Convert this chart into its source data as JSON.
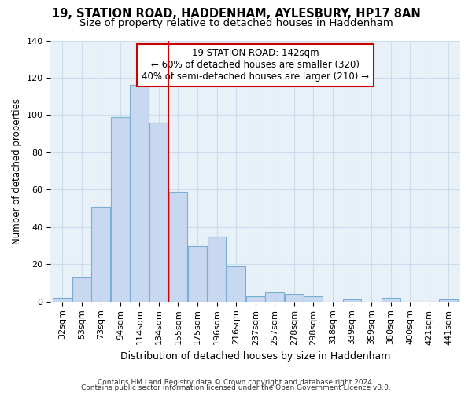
{
  "title1": "19, STATION ROAD, HADDENHAM, AYLESBURY, HP17 8AN",
  "title2": "Size of property relative to detached houses in Haddenham",
  "xlabel": "Distribution of detached houses by size in Haddenham",
  "ylabel": "Number of detached properties",
  "categories": [
    "32sqm",
    "53sqm",
    "73sqm",
    "94sqm",
    "114sqm",
    "134sqm",
    "155sqm",
    "175sqm",
    "196sqm",
    "216sqm",
    "237sqm",
    "257sqm",
    "278sqm",
    "298sqm",
    "318sqm",
    "339sqm",
    "359sqm",
    "380sqm",
    "400sqm",
    "421sqm",
    "441sqm"
  ],
  "values": [
    2,
    13,
    51,
    99,
    116,
    96,
    59,
    30,
    35,
    19,
    3,
    5,
    4,
    3,
    0,
    1,
    0,
    2,
    0,
    0,
    1
  ],
  "bar_color": "#c8d8f0",
  "bar_edge_color": "#7aafd4",
  "vline_x": 5.5,
  "vline_color": "#cc0000",
  "annotation_text": "19 STATION ROAD: 142sqm\n← 60% of detached houses are smaller (320)\n40% of semi-detached houses are larger (210) →",
  "annotation_box_color": "#ffffff",
  "annotation_box_edge": "#cc0000",
  "ylim": [
    0,
    140
  ],
  "yticks": [
    0,
    20,
    40,
    60,
    80,
    100,
    120,
    140
  ],
  "grid_color": "#ccdcef",
  "bg_color": "#e8f0f8",
  "footer1": "Contains HM Land Registry data © Crown copyright and database right 2024.",
  "footer2": "Contains public sector information licensed under the Open Government Licence v3.0.",
  "title_fontsize": 10.5,
  "subtitle_fontsize": 9.5,
  "tick_fontsize": 8,
  "ylabel_fontsize": 8.5,
  "xlabel_fontsize": 9,
  "annotation_fontsize": 8.5,
  "footer_fontsize": 6.5
}
